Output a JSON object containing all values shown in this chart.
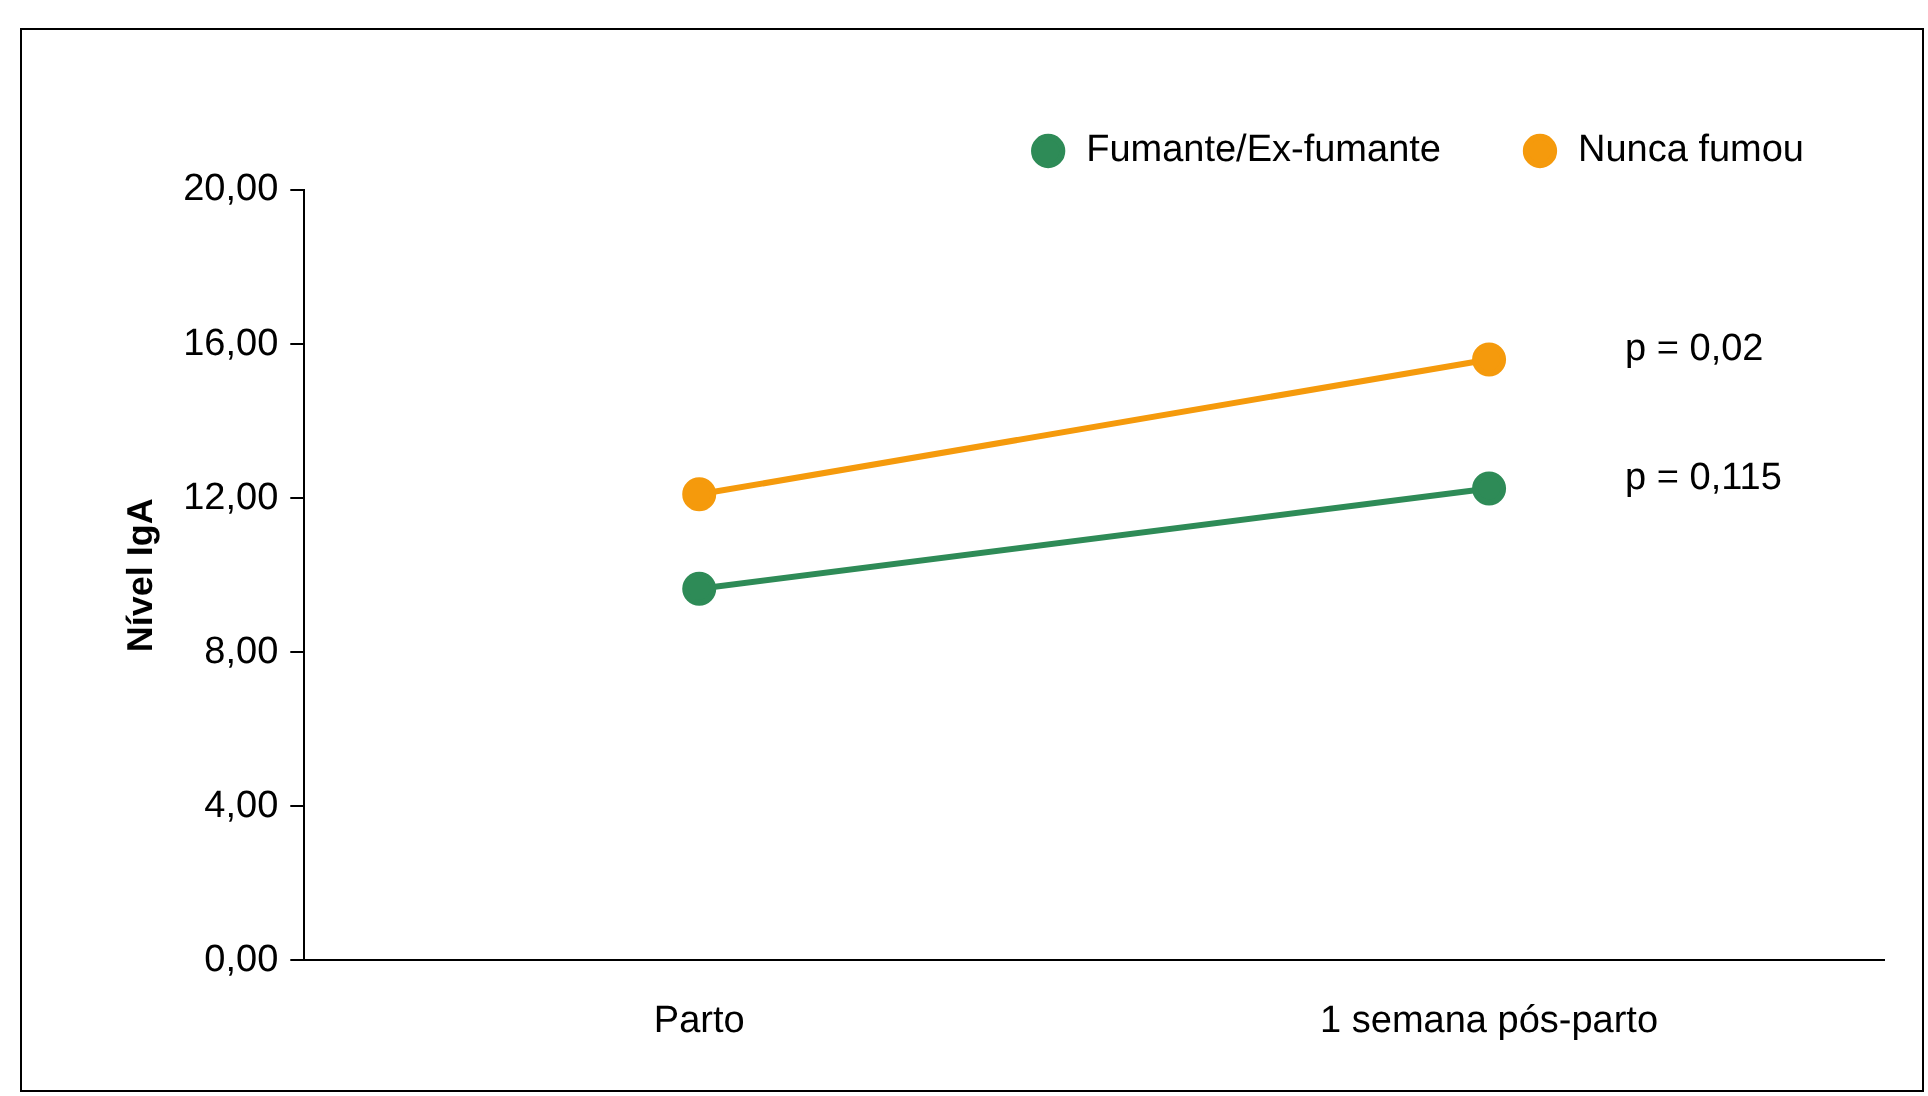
{
  "chart_data": {
    "type": "line",
    "ylabel": "Nível IgA",
    "categories": [
      "Parto",
      "1 semana pós-parto"
    ],
    "series": [
      {
        "name": "Fumante/Ex-fumante",
        "color": "#2e8b57",
        "values": [
          9.65,
          12.25
        ]
      },
      {
        "name": "Nunca fumou",
        "color": "#f59a0c",
        "values": [
          12.1,
          15.6
        ]
      }
    ],
    "ylim": [
      0,
      20
    ],
    "yticks": [
      {
        "value": 0,
        "label": "0,00"
      },
      {
        "value": 4,
        "label": "4,00"
      },
      {
        "value": 8,
        "label": "8,00"
      },
      {
        "value": 12,
        "label": "12,00"
      },
      {
        "value": 16,
        "label": "16,00"
      },
      {
        "value": 20,
        "label": "20,00"
      }
    ],
    "annotations": [
      "p = 0,02",
      "p = 0,115"
    ],
    "legend": "top right",
    "marker": "circle",
    "line_style": "solid",
    "grid": false
  }
}
